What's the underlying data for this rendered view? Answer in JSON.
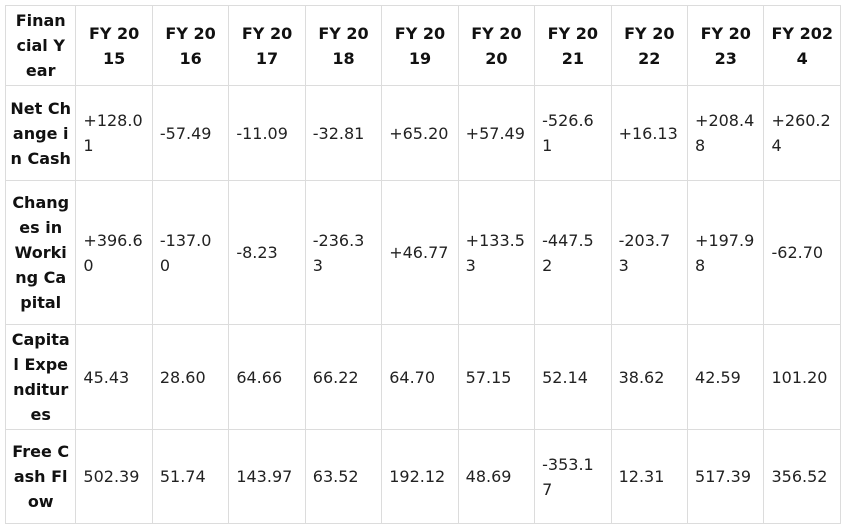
{
  "table": {
    "header": {
      "first": "Financial Year",
      "years": [
        "FY 2015",
        "FY 2016",
        "FY 2017",
        "FY 2018",
        "FY 2019",
        "FY 2020",
        "FY 2021",
        "FY 2022",
        "FY 2023",
        "FY 2024"
      ]
    },
    "rows": [
      {
        "label": "Net Change in Cash",
        "values": [
          "+128.01",
          "-57.49",
          "-11.09",
          "-32.81",
          "+65.20",
          "+57.49",
          "-526.61",
          "+16.13",
          "+208.48",
          "+260.24"
        ]
      },
      {
        "label": "Changes in Working Capital",
        "values": [
          "+396.60",
          "-137.00",
          "-8.23",
          "-236.33",
          "+46.77",
          "+133.53",
          "-447.52",
          "-203.73",
          "+197.98",
          "-62.70"
        ]
      },
      {
        "label": "Capital Expenditures",
        "values": [
          "45.43",
          "28.60",
          "64.66",
          "66.22",
          "64.70",
          "57.15",
          "52.14",
          "38.62",
          "42.59",
          "101.20"
        ]
      },
      {
        "label": "Free Cash Flow",
        "values": [
          "502.39",
          "51.74",
          "143.97",
          "63.52",
          "192.12",
          "48.69",
          "-353.17",
          "12.31",
          "517.39",
          "356.52"
        ]
      }
    ]
  }
}
